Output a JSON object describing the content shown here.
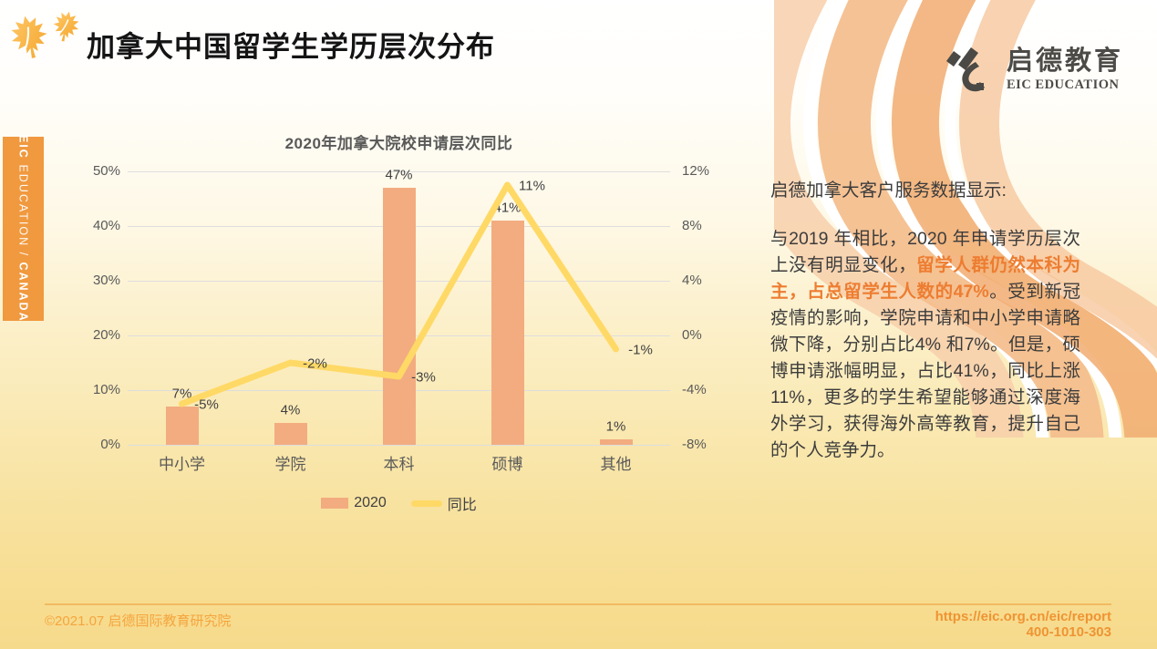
{
  "slide": {
    "title": "加拿大中国留学生学历层次分布"
  },
  "logo": {
    "cn": "启德教育",
    "en": "EIC EDUCATION"
  },
  "sidebar": {
    "eic": "EIC",
    "education": " EDUCATION / ",
    "canada": "CANADA"
  },
  "chart_data": {
    "type": "combo-bar-line",
    "title": "2020年加拿大院校申请层次同比",
    "categories": [
      "中小学",
      "学院",
      "本科",
      "硕博",
      "其他"
    ],
    "series": [
      {
        "name": "2020",
        "type": "bar",
        "axis": "left",
        "values": [
          7,
          4,
          47,
          41,
          1
        ],
        "labels": [
          "7%",
          "4%",
          "47%",
          "41%",
          "1%"
        ],
        "color": "#f2ac80"
      },
      {
        "name": "同比",
        "type": "line",
        "axis": "right",
        "values": [
          -5,
          -2,
          -3,
          11,
          -1
        ],
        "labels": [
          "-5%",
          "-2%",
          "-3%",
          "11%",
          "-1%"
        ],
        "color": "#ffd966"
      }
    ],
    "left_axis": {
      "min": 0,
      "max": 50,
      "ticks": [
        "50%",
        "40%",
        "30%",
        "20%",
        "10%",
        "0%"
      ]
    },
    "right_axis": {
      "min": -8,
      "max": 12,
      "ticks": [
        "12%",
        "8%",
        "4%",
        "0%",
        "-4%",
        "-8%"
      ]
    },
    "grid": true,
    "legend_position": "bottom"
  },
  "text_panel": {
    "heading": "启德加拿大客户服务数据显示:",
    "paragraph": [
      {
        "text": "与2019 年相比，2020 年申请学历层次上没有明显变化，",
        "emphasis": false
      },
      {
        "text": "留学人群仍然本科为主，占总留学生人数的47%",
        "emphasis": true
      },
      {
        "text": "。受到新冠疫情的影响，学院申请和中小学申请略微下降，分别占比4% 和7%。但是，硕博申请涨幅明显，占比41%，同比上涨11%，更多的学生希望能够通过深度海外学习，获得海外高等教育，提升自己的个人竞争力。",
        "emphasis": false
      }
    ]
  },
  "footer": {
    "copyright": "©2021.07 启德国际教育研究院",
    "url": "https://eic.org.cn/eic/report",
    "phone": "400-1010-303"
  },
  "colors": {
    "bar": "#f2ac80",
    "line": "#ffd966",
    "accent_orange": "#ed7d31",
    "tab_orange": "#f0993f",
    "footer_orange": "#f2a13c"
  }
}
